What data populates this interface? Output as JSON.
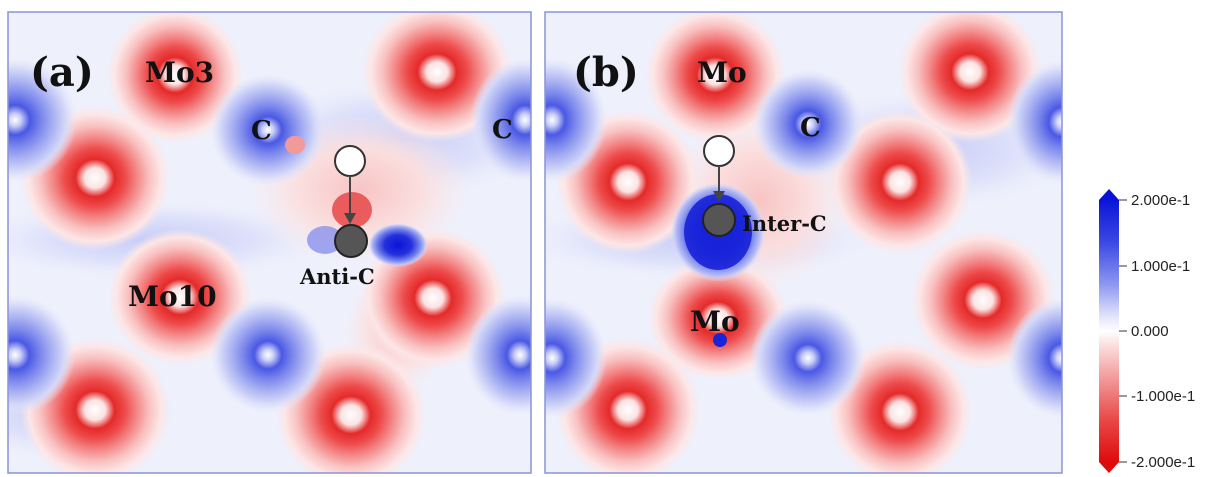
{
  "panel_a": {
    "letter": "(a)",
    "labels": {
      "mo3": "Mo3",
      "mo10": "Mo10",
      "c_left": "C",
      "c_right": "C",
      "anti_c": "Anti-C"
    }
  },
  "panel_b": {
    "letter": "(b)",
    "labels": {
      "mo_top": "Mo",
      "mo_bottom": "Mo",
      "c": "C",
      "inter_c": "Inter-C"
    }
  },
  "colorbar": {
    "ticks": [
      "2.000e-1",
      "1.000e-1",
      "0.000",
      "-1.000e-1",
      "-2.000e-1"
    ],
    "colors": [
      "#0a14d8",
      "#2d3ae0",
      "#5060e6",
      "#7a86ec",
      "#a3acf2",
      "#c8cdf7",
      "#e4e7fb",
      "#ffffff",
      "#fbe2e2",
      "#f8c4c4",
      "#f3a0a0",
      "#ee7878",
      "#e95050",
      "#e42a2a",
      "#e00a0a"
    ]
  }
}
